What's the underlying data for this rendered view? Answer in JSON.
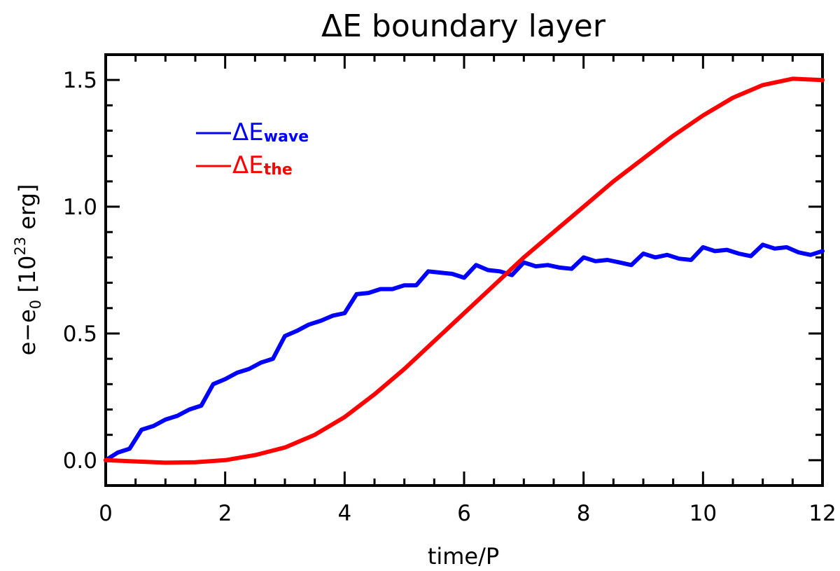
{
  "chart_data": {
    "type": "line",
    "title": "ΔE boundary layer",
    "xlabel": "time/P",
    "ylabel": {
      "main": "e−e",
      "sub": "0",
      "bracket_open": "[10",
      "sup": "23",
      "unit": " erg]"
    },
    "xlim": [
      0,
      12
    ],
    "ylim": [
      -0.1,
      1.6
    ],
    "x_ticks": [
      0,
      2,
      4,
      6,
      8,
      10,
      12
    ],
    "x_tick_labels": [
      "0",
      "2",
      "4",
      "6",
      "8",
      "10",
      "12"
    ],
    "y_ticks": [
      0.0,
      0.5,
      1.0,
      1.5
    ],
    "y_tick_labels": [
      "0.0",
      "0.5",
      "1.0",
      "1.5"
    ],
    "grid": false,
    "legend_position": "top-left",
    "series": [
      {
        "name": "ΔE",
        "name_sub": "wave",
        "color": "#0000ff",
        "x": [
          0,
          0.2,
          0.4,
          0.6,
          0.8,
          1.0,
          1.2,
          1.4,
          1.6,
          1.8,
          2.0,
          2.2,
          2.4,
          2.6,
          2.8,
          3.0,
          3.2,
          3.4,
          3.6,
          3.8,
          4.0,
          4.2,
          4.4,
          4.6,
          4.8,
          5.0,
          5.2,
          5.4,
          5.6,
          5.8,
          6.0,
          6.2,
          6.4,
          6.6,
          6.8,
          7.0,
          7.2,
          7.4,
          7.6,
          7.8,
          8.0,
          8.2,
          8.4,
          8.6,
          8.8,
          9.0,
          9.2,
          9.4,
          9.6,
          9.8,
          10.0,
          10.2,
          10.4,
          10.6,
          10.8,
          11.0,
          11.2,
          11.4,
          11.6,
          11.8,
          12.0
        ],
        "y": [
          0.0,
          0.03,
          0.045,
          0.12,
          0.135,
          0.16,
          0.175,
          0.2,
          0.215,
          0.3,
          0.32,
          0.345,
          0.36,
          0.385,
          0.4,
          0.49,
          0.51,
          0.535,
          0.55,
          0.57,
          0.58,
          0.655,
          0.66,
          0.675,
          0.675,
          0.69,
          0.69,
          0.745,
          0.74,
          0.735,
          0.72,
          0.77,
          0.75,
          0.745,
          0.73,
          0.78,
          0.765,
          0.77,
          0.76,
          0.755,
          0.8,
          0.785,
          0.79,
          0.78,
          0.77,
          0.815,
          0.8,
          0.81,
          0.795,
          0.79,
          0.84,
          0.825,
          0.83,
          0.815,
          0.805,
          0.85,
          0.835,
          0.84,
          0.82,
          0.81,
          0.825
        ]
      },
      {
        "name": "ΔE",
        "name_sub": "the",
        "color": "#ff0000",
        "x": [
          0,
          0.5,
          1.0,
          1.5,
          2.0,
          2.5,
          3.0,
          3.5,
          4.0,
          4.5,
          5.0,
          5.5,
          6.0,
          6.5,
          7.0,
          7.5,
          8.0,
          8.5,
          9.0,
          9.5,
          10.0,
          10.5,
          11.0,
          11.5,
          12.0
        ],
        "y": [
          0.0,
          -0.005,
          -0.01,
          -0.008,
          0.0,
          0.02,
          0.05,
          0.1,
          0.17,
          0.26,
          0.36,
          0.47,
          0.58,
          0.69,
          0.8,
          0.9,
          1.0,
          1.1,
          1.19,
          1.28,
          1.36,
          1.43,
          1.48,
          1.505,
          1.5
        ]
      }
    ]
  }
}
